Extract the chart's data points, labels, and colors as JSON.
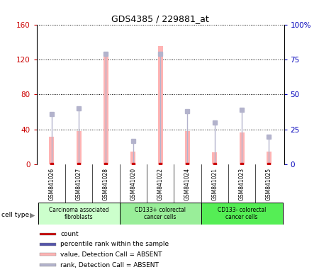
{
  "title": "GDS4385 / 229881_at",
  "samples": [
    "GSM841026",
    "GSM841027",
    "GSM841028",
    "GSM841020",
    "GSM841022",
    "GSM841024",
    "GSM841021",
    "GSM841023",
    "GSM841025"
  ],
  "groups_def": [
    {
      "start": 0,
      "end": 2,
      "label": "Carcinoma associated\nfibroblasts",
      "color": "#ccffcc"
    },
    {
      "start": 3,
      "end": 5,
      "label": "CD133+ colorectal\ncancer cells",
      "color": "#88ee88"
    },
    {
      "start": 6,
      "end": 8,
      "label": "CD133- colorectal\ncancer cells",
      "color": "#55ee55"
    }
  ],
  "value_bars": [
    32,
    38,
    126,
    15,
    135,
    38,
    14,
    37,
    15
  ],
  "rank_values": [
    36,
    40,
    79,
    17,
    79,
    38,
    30,
    39,
    20
  ],
  "value_color": "#ffb3b3",
  "rank_color": "#b3b3cc",
  "count_color": "#cc0000",
  "percentile_color": "#5555aa",
  "left_ylim": [
    0,
    160
  ],
  "right_ylim": [
    0,
    100
  ],
  "left_yticks": [
    0,
    40,
    80,
    120,
    160
  ],
  "left_yticklabels": [
    "0",
    "40",
    "80",
    "120",
    "160"
  ],
  "right_yticks": [
    0,
    25,
    50,
    75,
    100
  ],
  "right_yticklabels": [
    "0",
    "25",
    "50",
    "75",
    "100%"
  ],
  "left_tick_color": "#cc0000",
  "right_tick_color": "#0000bb",
  "bg_color": "#d8d8d8",
  "plot_bg": "#ffffff",
  "bar_width": 0.18,
  "legend_items": [
    {
      "color": "#cc0000",
      "label": "count"
    },
    {
      "color": "#5555aa",
      "label": "percentile rank within the sample"
    },
    {
      "color": "#ffb3b3",
      "label": "value, Detection Call = ABSENT"
    },
    {
      "color": "#b3b3cc",
      "label": "rank, Detection Call = ABSENT"
    }
  ]
}
